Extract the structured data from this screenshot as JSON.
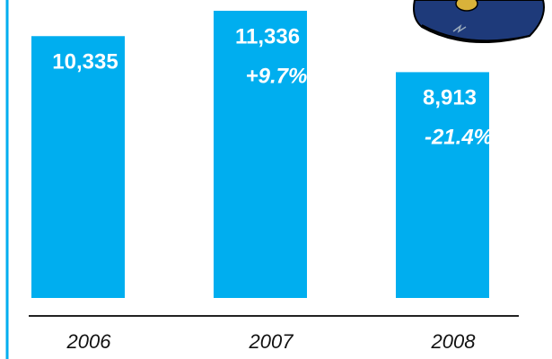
{
  "chart_data": {
    "type": "bar",
    "categories": [
      "2006",
      "2007",
      "2008"
    ],
    "values": [
      10335,
      11336,
      8913
    ],
    "value_labels": [
      "10,335",
      "11,336",
      "8,913"
    ],
    "annotations": [
      {
        "category": "2007",
        "text": "+9.7%"
      },
      {
        "category": "2008",
        "text": "-21.4%"
      }
    ],
    "color": "#00aeef"
  }
}
